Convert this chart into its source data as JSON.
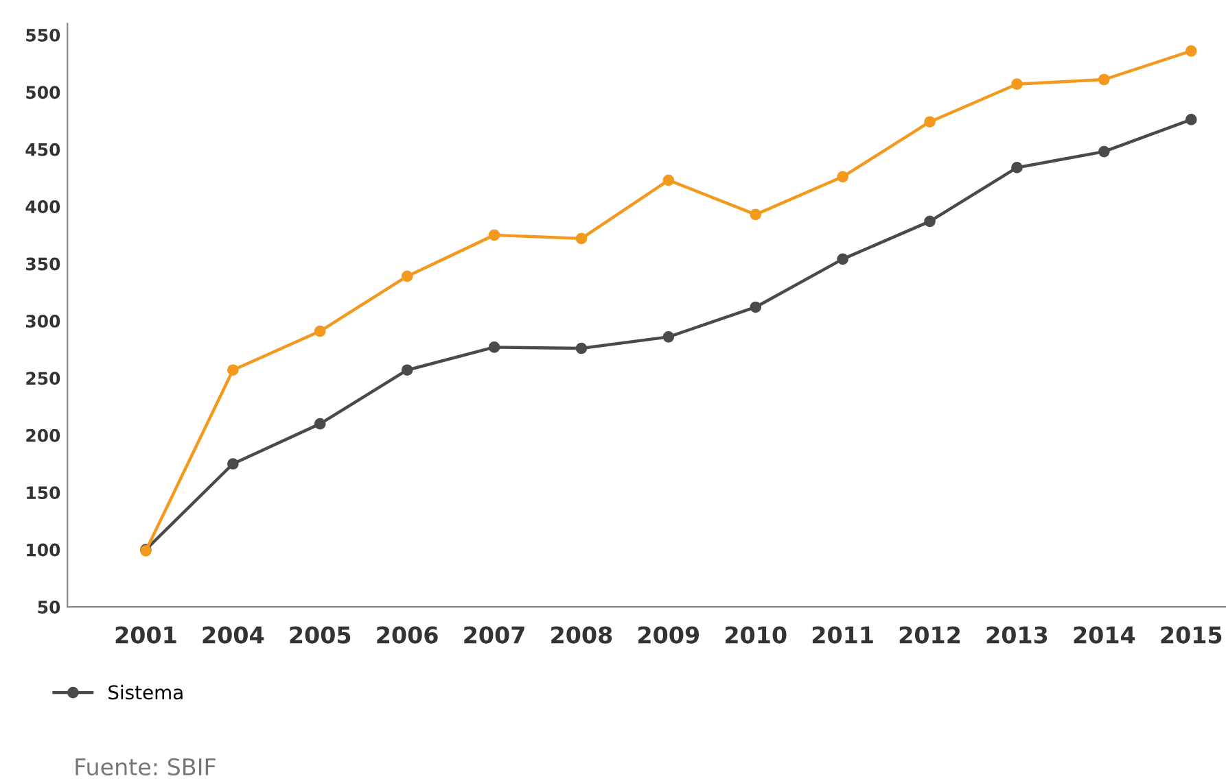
{
  "chart_data": {
    "type": "line",
    "categories": [
      "2001",
      "2004",
      "2005",
      "2006",
      "2007",
      "2008",
      "2009",
      "2010",
      "2011",
      "2012",
      "2013",
      "2014",
      "2015"
    ],
    "series": [
      {
        "color": "#f39a1e",
        "values": [
          99,
          257,
          291,
          339,
          375,
          372,
          423,
          393,
          426,
          474,
          507,
          511,
          536
        ]
      },
      {
        "name": "Sistema",
        "color": "#4a4a4a",
        "values": [
          100,
          175,
          210,
          257,
          277,
          276,
          286,
          312,
          354,
          387,
          434,
          448,
          476
        ]
      }
    ],
    "ylim": [
      50,
      560
    ],
    "yticks": [
      50,
      100,
      150,
      200,
      250,
      300,
      350,
      400,
      450,
      500,
      550
    ],
    "marker": "circle",
    "line_style": "solid",
    "grid": false,
    "legend": "bottom left",
    "annotations": [
      "Fuente: SBIF"
    ]
  }
}
